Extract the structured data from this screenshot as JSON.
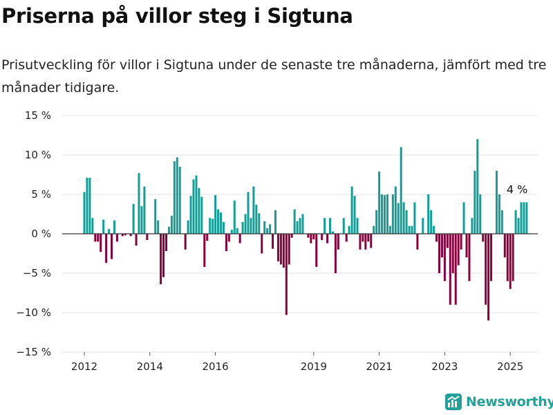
{
  "title": "Priserna på villor steg i Sigtuna",
  "subtitle": "Prisutveckling för villor i Sigtuna under de senaste tre månaderna, jämfört med tre månader tidigare.",
  "brand": {
    "name": "Newsworthy",
    "color": "#24a197"
  },
  "colors": {
    "positive": "#109e97",
    "negative": "#8a003a",
    "grid": "#e2e2e2",
    "zero_line": "#333333"
  },
  "chart_data": {
    "type": "bar",
    "title": "Priserna på villor steg i Sigtuna",
    "xlabel": "",
    "ylabel": "",
    "ylim": [
      -15,
      15
    ],
    "y_ticks": [
      15,
      10,
      5,
      0,
      -5,
      -10,
      -15
    ],
    "y_tick_labels": [
      "15 %",
      "10 %",
      "5 %",
      "0 %",
      "−5 %",
      "−10 %",
      "−15 %"
    ],
    "x_ticks": [
      2012,
      2014,
      2016,
      2019,
      2021,
      2023,
      2025
    ],
    "x_tick_labels": [
      "2012",
      "2014",
      "2016",
      "2019",
      "2021",
      "2023",
      "2025"
    ],
    "grid": true,
    "start": "2012-01",
    "end": "2025-03",
    "annotations": [
      {
        "text": "4 %",
        "x": "2025-03",
        "y": 4
      }
    ],
    "values": [
      5.3,
      7.1,
      7.1,
      2.0,
      -1.0,
      -1.0,
      -2.3,
      1.8,
      -3.7,
      0.6,
      -3.2,
      1.7,
      -1.0,
      0.0,
      -0.3,
      -0.2,
      0.0,
      -0.3,
      3.8,
      -1.5,
      7.7,
      3.5,
      6.0,
      -0.8,
      0.0,
      0.0,
      4.4,
      1.7,
      -6.4,
      -5.5,
      -2.2,
      0.9,
      2.3,
      9.2,
      9.7,
      8.5,
      0.0,
      -2.0,
      1.7,
      4.8,
      6.9,
      7.4,
      5.8,
      4.7,
      -4.2,
      -0.9,
      2.0,
      1.9,
      4.9,
      3.1,
      2.7,
      1.5,
      -2.2,
      -1.0,
      0.5,
      4.2,
      0.7,
      -1.2,
      1.5,
      2.5,
      5.3,
      2.0,
      6.0,
      3.7,
      2.6,
      -2.5,
      1.6,
      0.7,
      1.2,
      -1.9,
      3.0,
      -3.5,
      -3.9,
      -4.3,
      -10.3,
      -3.9,
      -0.5,
      3.1,
      1.6,
      2.0,
      2.5,
      0.0,
      -0.5,
      -1.2,
      -0.7,
      -4.2,
      0.0,
      -0.8,
      2.0,
      -1.2,
      2.0,
      0.3,
      -5.0,
      -2.0,
      0.0,
      2.0,
      -1.0,
      1.0,
      6.0,
      4.8,
      2.0,
      -2.0,
      -1.0,
      -2.0,
      -1.0,
      -1.8,
      1.0,
      3.0,
      7.9,
      5.0,
      4.9,
      5.0,
      1.0,
      5.0,
      6.0,
      3.9,
      11.0,
      4.0,
      3.0,
      1.0,
      1.0,
      4.0,
      -2.0,
      0.0,
      2.0,
      0.0,
      5.0,
      3.0,
      1.0,
      -1.0,
      -5.0,
      -3.0,
      -6.0,
      -1.8,
      -9.0,
      -5.0,
      -9.0,
      -4.0,
      -2.0,
      4.0,
      -3.0,
      -6.0,
      2.0,
      8.0,
      12.0,
      5.0,
      -1.0,
      -9.0,
      -11.0,
      -6.0,
      0.0,
      8.0,
      5.0,
      3.0,
      -3.0,
      -6.0,
      -7.0,
      -6.0,
      3.0,
      2.0,
      4.0,
      4.0,
      4.0
    ]
  }
}
